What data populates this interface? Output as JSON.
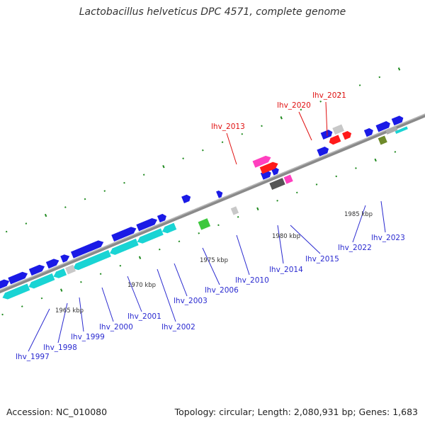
{
  "title": "Lactobacillus helveticus DPC 4571, complete genome",
  "accession": "Accession: NC_010080",
  "summary": "Topology: circular; Length: 2,080,931 bp; Genes: 1,683",
  "colors": {
    "backbone": "#8a8a8a",
    "forward_gene": "#1a1ae6",
    "reverse_gene": "#19d4d4",
    "highlight_red": "#ff1a1a",
    "highlight_pink": "#ff3fbf",
    "highlight_green": "#3ec83e",
    "grey_gene": "#c8c8c8",
    "tick_green": "#1f8a1f",
    "label_blue": "#2a2ad0",
    "label_red": "#e01010"
  },
  "scale_labels": [
    "1965 kbp",
    "1970 kbp",
    "1975 kbp",
    "1980 kbp",
    "1985 kbp"
  ],
  "gene_labels": {
    "lhv_1997": "lhv_1997",
    "lhv_1998": "lhv_1998",
    "lhv_1999": "lhv_1999",
    "lhv_2000": "lhv_2000",
    "lhv_2001": "lhv_2001",
    "lhv_2002": "lhv_2002",
    "lhv_2003": "lhv_2003",
    "lhv_2006": "lhv_2006",
    "lhv_2010": "lhv_2010",
    "lhv_2013": "lhv_2013",
    "lhv_2014": "lhv_2014",
    "lhv_2015": "lhv_2015",
    "lhv_2020": "lhv_2020",
    "lhv_2021": "lhv_2021",
    "lhv_2022": "lhv_2022",
    "lhv_2023": "lhv_2023"
  }
}
